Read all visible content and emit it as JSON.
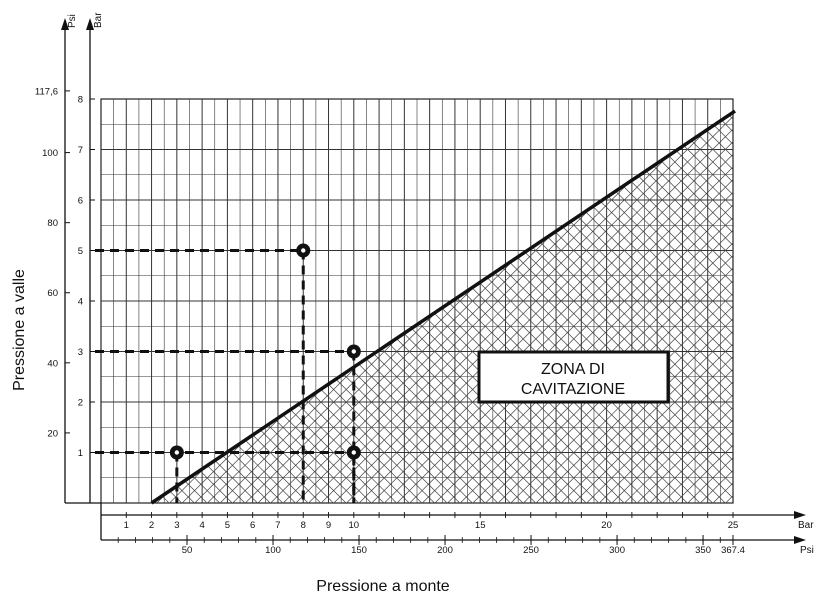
{
  "chart_data": {
    "type": "line",
    "title": "",
    "ylabel": "Pressione a valle",
    "xlabel": "Pressione a monte",
    "y_unit_bar": "Bar",
    "y_unit_psi": "Psi",
    "x_unit_bar": "Bar",
    "x_unit_psi": "Psi",
    "xlim_bar": [
      0,
      25
    ],
    "ylim_bar": [
      0,
      8
    ],
    "x_ticks_bar": [
      "1",
      "2",
      "3",
      "4",
      "5",
      "6",
      "7",
      "8",
      "9",
      "10",
      "15",
      "20",
      "25"
    ],
    "x_ticks_psi": [
      "50",
      "100",
      "150",
      "200",
      "250",
      "300",
      "350",
      "367.4"
    ],
    "y_ticks_bar": [
      "1",
      "2",
      "3",
      "4",
      "5",
      "6",
      "7",
      "8"
    ],
    "y_ticks_psi": [
      "20",
      "40",
      "60",
      "80",
      "100",
      "117,6"
    ],
    "cavitation_boundary": {
      "x": [
        2,
        25
      ],
      "y": [
        0,
        7.75
      ]
    },
    "zone_label": [
      "ZONA DI",
      "CAVITAZIONE"
    ],
    "points": [
      {
        "x": 3,
        "y": 1
      },
      {
        "x": 8,
        "y": 5
      },
      {
        "x": 10,
        "y": 3
      },
      {
        "x": 10,
        "y": 1
      }
    ],
    "grid": true
  }
}
